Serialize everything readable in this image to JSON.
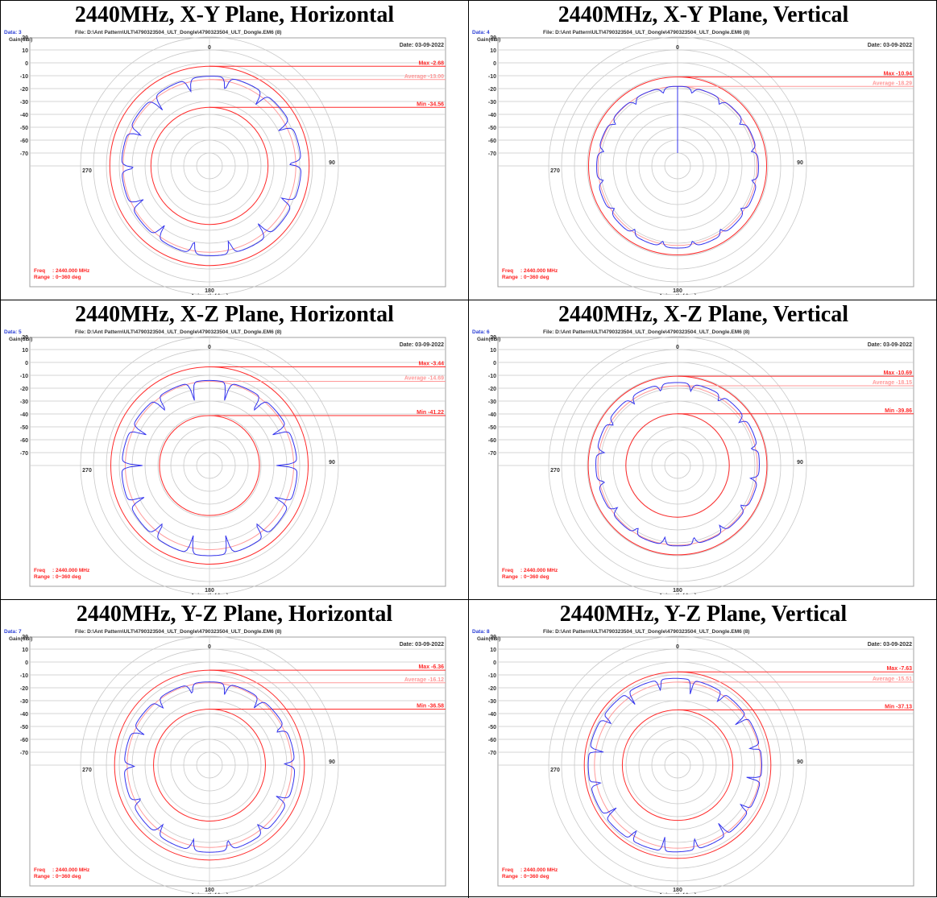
{
  "page": {
    "layout": "3x2 table of polar antenna radiation patterns"
  },
  "colors": {
    "pattern": "#3333ee",
    "marker_line": "#ff2a2a",
    "average_line": "#ff9a9a",
    "grid": "#c8c8c8",
    "label_text": "#333333",
    "data_label": "#2b3fd6",
    "red_text": "#ff2020"
  },
  "common": {
    "file_label": "File: D:\\Ant Pattern\\ULT\\4790323504_ULT_Dongle\\4790323504_ULT_Dongle.EM6  (8)",
    "date_label": "Date: 03-09-2022",
    "gain_axis_label": "Gain(dBi)",
    "gain_ticks": [
      "20",
      "10",
      "0",
      "-10",
      "-20",
      "-30",
      "-40",
      "-50",
      "-60",
      "-70"
    ],
    "angle_labels": {
      "top": "0",
      "right": "90",
      "bottom": "180",
      "left": "270"
    },
    "xlabel": "Azimuth (deg)",
    "freq_label": "Freq",
    "freq_value": ": 2440.000 MHz",
    "range_label": "Range",
    "range_value": ": 0~360 deg",
    "max_prefix": "Max",
    "average_prefix": "Average",
    "min_prefix": "Min"
  },
  "chart_data": [
    {
      "type": "polar-line",
      "title": "2440MHz, X-Y Plane, Horizontal",
      "data_label": "Data: 3",
      "r_axis": {
        "label": "Gain(dBi)",
        "min": -80,
        "max": 20,
        "ticks": [
          20,
          10,
          0,
          -10,
          -20,
          -30,
          -40,
          -50,
          -60,
          -70
        ]
      },
      "max": -2.68,
      "average": -13.0,
      "min": -34.56,
      "pattern_model": {
        "mean_db": -13.0,
        "lobes": 14,
        "depth_db": 7.5,
        "notch_sharpness": 6,
        "phase_deg": 10,
        "tilt_db": 1.5,
        "tilt_deg": 90
      },
      "frequency_mhz": 2440.0,
      "range_deg": [
        0,
        360
      ]
    },
    {
      "type": "polar-line",
      "title": "2440MHz, X-Y Plane, Vertical",
      "data_label": "Data: 4",
      "r_axis": {
        "label": "Gain(dBi)",
        "min": -80,
        "max": 20,
        "ticks": [
          20,
          10,
          0,
          -10,
          -20,
          -30,
          -40,
          -50,
          -60,
          -70
        ]
      },
      "max": -10.94,
      "average": -18.29,
      "min": null,
      "pattern_model": {
        "mean_db": -18.3,
        "lobes": 16,
        "depth_db": 3.0,
        "notch_sharpness": 4,
        "phase_deg": 0,
        "tilt_db": 1.0,
        "tilt_deg": 180,
        "spike_deg": 0,
        "spike_to_db": -70
      },
      "frequency_mhz": 2440.0,
      "range_deg": [
        0,
        360
      ]
    },
    {
      "type": "polar-line",
      "title": "2440MHz, X-Z Plane, Horizontal",
      "data_label": "Data: 5",
      "r_axis": {
        "label": "Gain(dBi)",
        "min": -80,
        "max": 20,
        "ticks": [
          20,
          10,
          0,
          -10,
          -20,
          -30,
          -40,
          -50,
          -60,
          -70
        ]
      },
      "max": -3.44,
      "average": -14.69,
      "min": -41.22,
      "pattern_model": {
        "mean_db": -15.5,
        "lobes": 14,
        "depth_db": 10.0,
        "notch_sharpness": 7,
        "phase_deg": 0,
        "tilt_db": 2.0,
        "tilt_deg": 180
      },
      "frequency_mhz": 2440.0,
      "range_deg": [
        0,
        360
      ]
    },
    {
      "type": "polar-line",
      "title": "2440MHz, X-Z Plane, Vertical",
      "data_label": "Data: 6",
      "r_axis": {
        "label": "Gain(dBi)",
        "min": -80,
        "max": 20,
        "ticks": [
          20,
          10,
          0,
          -10,
          -20,
          -30,
          -40,
          -50,
          -60,
          -70
        ]
      },
      "max": -10.69,
      "average": -18.15,
      "min": -39.86,
      "pattern_model": {
        "mean_db": -18.0,
        "lobes": 16,
        "depth_db": 4.0,
        "notch_sharpness": 5,
        "phase_deg": 11,
        "tilt_db": 1.0,
        "tilt_deg": 0
      },
      "frequency_mhz": 2440.0,
      "range_deg": [
        0,
        360
      ]
    },
    {
      "type": "polar-line",
      "title": "2440MHz, Y-Z Plane, Horizontal",
      "data_label": "Data: 7",
      "r_axis": {
        "label": "Gain(dBi)",
        "min": -80,
        "max": 20,
        "ticks": [
          20,
          10,
          0,
          -10,
          -20,
          -30,
          -40,
          -50,
          -60,
          -70
        ]
      },
      "max": -6.36,
      "average": -16.12,
      "min": -36.58,
      "pattern_model": {
        "mean_db": -16.0,
        "lobes": 14,
        "depth_db": 6.0,
        "notch_sharpness": 6,
        "phase_deg": 5,
        "tilt_db": 1.5,
        "tilt_deg": 180
      },
      "frequency_mhz": 2440.0,
      "range_deg": [
        0,
        360
      ]
    },
    {
      "type": "polar-line",
      "title": "2440MHz, Y-Z Plane, Vertical",
      "data_label": "Data: 8",
      "r_axis": {
        "label": "Gain(dBi)",
        "min": -80,
        "max": 20,
        "ticks": [
          20,
          10,
          0,
          -10,
          -20,
          -30,
          -40,
          -50,
          -60,
          -70
        ]
      },
      "max": -7.63,
      "average": -15.51,
      "min": -37.13,
      "pattern_model": {
        "mean_db": -15.5,
        "lobes": 16,
        "depth_db": 8.0,
        "notch_sharpness": 9,
        "phase_deg": 11,
        "tilt_db": 2.0,
        "tilt_deg": 270
      },
      "frequency_mhz": 2440.0,
      "range_deg": [
        0,
        360
      ]
    }
  ]
}
